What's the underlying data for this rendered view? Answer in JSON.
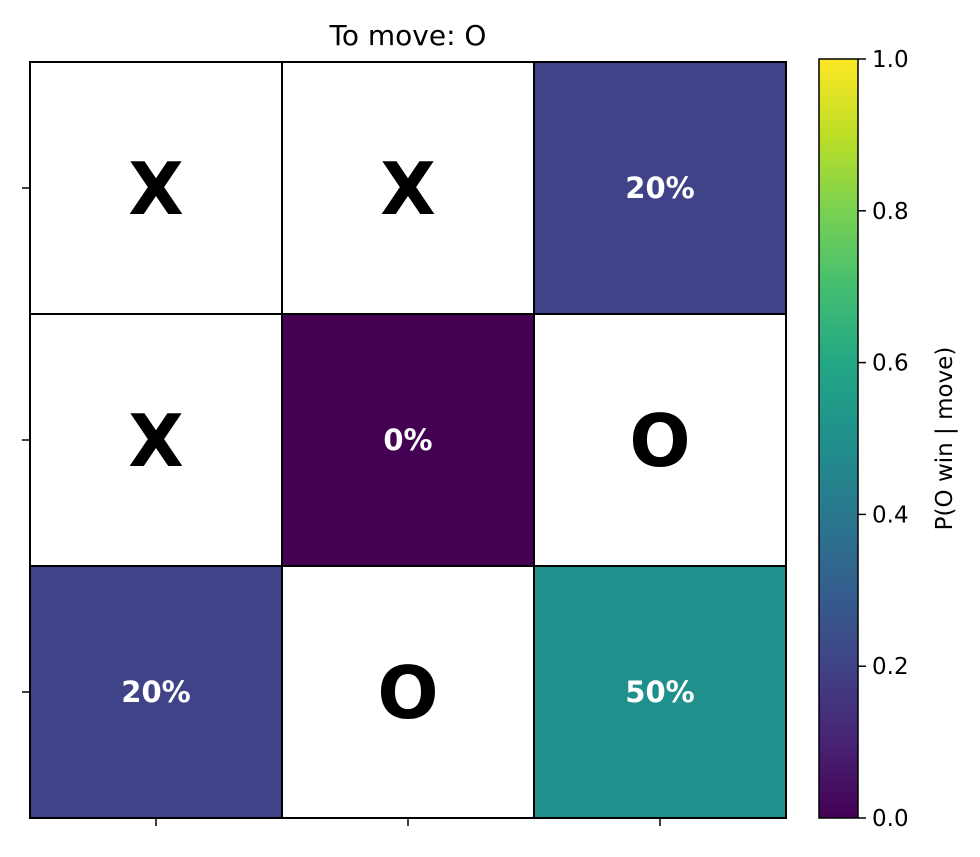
{
  "chart_data": {
    "type": "heatmap",
    "title": "To move: O",
    "rows": 3,
    "cols": 3,
    "cells": [
      [
        {
          "mark": "X"
        },
        {
          "mark": "X"
        },
        {
          "value": 0.2,
          "label": "20%"
        }
      ],
      [
        {
          "mark": "X"
        },
        {
          "value": 0.0,
          "label": "0%"
        },
        {
          "mark": "O"
        }
      ],
      [
        {
          "value": 0.2,
          "label": "20%"
        },
        {
          "mark": "O"
        },
        {
          "value": 0.5,
          "label": "50%"
        }
      ]
    ],
    "colorbar": {
      "label": "P(O win | move)",
      "range": [
        0,
        1
      ],
      "ticks": [
        0.0,
        0.2,
        0.4,
        0.6,
        0.8,
        1.0
      ],
      "tick_labels": [
        "0.0",
        "0.2",
        "0.4",
        "0.6",
        "0.8",
        "1.0"
      ],
      "colormap": "viridis"
    }
  }
}
